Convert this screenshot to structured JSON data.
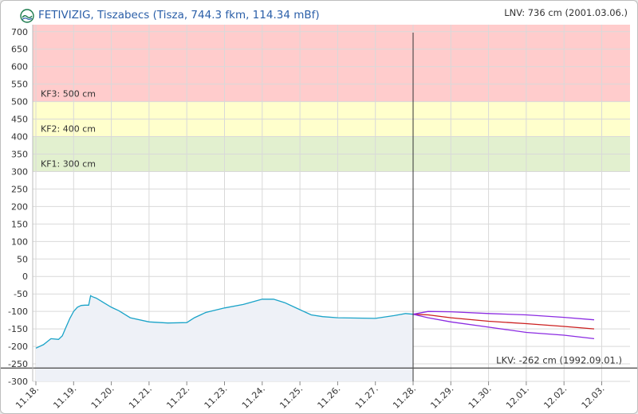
{
  "header": {
    "title": "FETIVIZIG, Tiszabecs (Tisza, 744.3 fkm, 114.34 mBf)",
    "lnv_label": "LNV: 736 cm (2001.03.06.)"
  },
  "chart_data": {
    "type": "line",
    "title": "FETIVIZIG, Tiszabecs (Tisza, 744.3 fkm, 114.34 mBf)",
    "ylim": [
      -300,
      720
    ],
    "y_ticks": [
      700,
      650,
      600,
      550,
      500,
      450,
      400,
      350,
      300,
      250,
      200,
      150,
      100,
      50,
      0,
      -50,
      -100,
      -150,
      -200,
      -250,
      -300
    ],
    "x_range": [
      0,
      15.6
    ],
    "x_tick_labels": [
      "11.18.",
      "11.19.",
      "11.20.",
      "11.21.",
      "11.22.",
      "11.23.",
      "11.24.",
      "11.25.",
      "11.26.",
      "11.27.",
      "11.28.",
      "11.29.",
      "11.30.",
      "12.01.",
      "12.02.",
      "12.03."
    ],
    "grid": true,
    "now_marker_x": 10,
    "bands": [
      {
        "label": "KF3: 500 cm",
        "from": 500,
        "to": 720,
        "color": "#ffcccc"
      },
      {
        "label": "KF2: 400 cm",
        "from": 400,
        "to": 500,
        "color": "#ffffcc"
      },
      {
        "label": "KF1: 300 cm",
        "from": 300,
        "to": 400,
        "color": "#e2f0cf"
      }
    ],
    "reference_lines": [
      {
        "label": "LKV: -262 cm (1992.09.01.)",
        "value": -262
      }
    ],
    "series": [
      {
        "kind": "observed",
        "color": "#1aa3c8",
        "x": [
          0,
          0.2,
          0.4,
          0.6,
          0.7,
          0.8,
          0.9,
          1.0,
          1.1,
          1.2,
          1.3,
          1.4,
          1.45,
          1.5,
          1.6,
          1.8,
          2.0,
          2.2,
          2.5,
          3.0,
          3.5,
          4.0,
          4.2,
          4.5,
          5.0,
          5.5,
          6.0,
          6.3,
          6.6,
          7.0,
          7.3,
          7.6,
          8.0,
          8.5,
          9.0,
          9.5,
          9.8,
          10.0
        ],
        "y": [
          -205,
          -195,
          -178,
          -180,
          -170,
          -145,
          -120,
          -100,
          -88,
          -83,
          -82,
          -82,
          -55,
          -58,
          -62,
          -75,
          -88,
          -98,
          -118,
          -130,
          -133,
          -132,
          -118,
          -103,
          -90,
          -80,
          -65,
          -65,
          -75,
          -95,
          -110,
          -115,
          -118,
          -119,
          -120,
          -112,
          -106,
          -108
        ]
      },
      {
        "kind": "forecast",
        "color": "#cc1f1f",
        "x": [
          10,
          10.4,
          11,
          12,
          13,
          14,
          14.8
        ],
        "y": [
          -108,
          -110,
          -118,
          -128,
          -135,
          -143,
          -150
        ]
      },
      {
        "kind": "forecast-upper",
        "color": "#8b2be2",
        "x": [
          10,
          10.4,
          11,
          12,
          13,
          14,
          14.8
        ],
        "y": [
          -108,
          -100,
          -101,
          -106,
          -110,
          -117,
          -124
        ]
      },
      {
        "kind": "forecast-lower",
        "color": "#8b2be2",
        "x": [
          10,
          10.4,
          11,
          12,
          13,
          14,
          14.8
        ],
        "y": [
          -108,
          -118,
          -130,
          -145,
          -160,
          -168,
          -178
        ]
      }
    ]
  }
}
